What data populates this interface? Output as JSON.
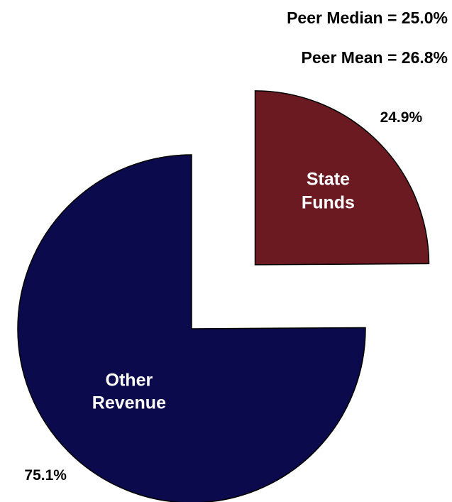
{
  "chart_data": {
    "type": "pie",
    "annotations": [
      "Peer Median = 25.0%",
      "Peer Mean = 26.8%"
    ],
    "categories": [
      "State Funds",
      "Other Revenue"
    ],
    "values": [
      24.9,
      75.1
    ],
    "value_labels": [
      "24.9%",
      "75.1%"
    ],
    "colors": [
      "#6b1a22",
      "#0a0a4c"
    ]
  }
}
